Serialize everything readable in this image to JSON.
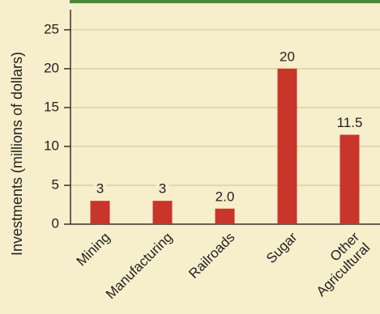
{
  "chart_data": {
    "type": "bar",
    "y_label": "Investments (millions of dollars)",
    "categories": [
      "Mining",
      "Manufacturing",
      "Railroads",
      "Sugar",
      "Other Agricultural"
    ],
    "values": [
      3,
      3,
      2,
      20,
      11.5
    ],
    "value_labels": [
      "3",
      "3",
      "2.0",
      "20",
      "11.5"
    ],
    "color": "#c8352b",
    "ylim": [
      0,
      28
    ],
    "yticks": [
      0,
      5,
      10,
      15,
      20,
      25
    ],
    "grid": true
  }
}
